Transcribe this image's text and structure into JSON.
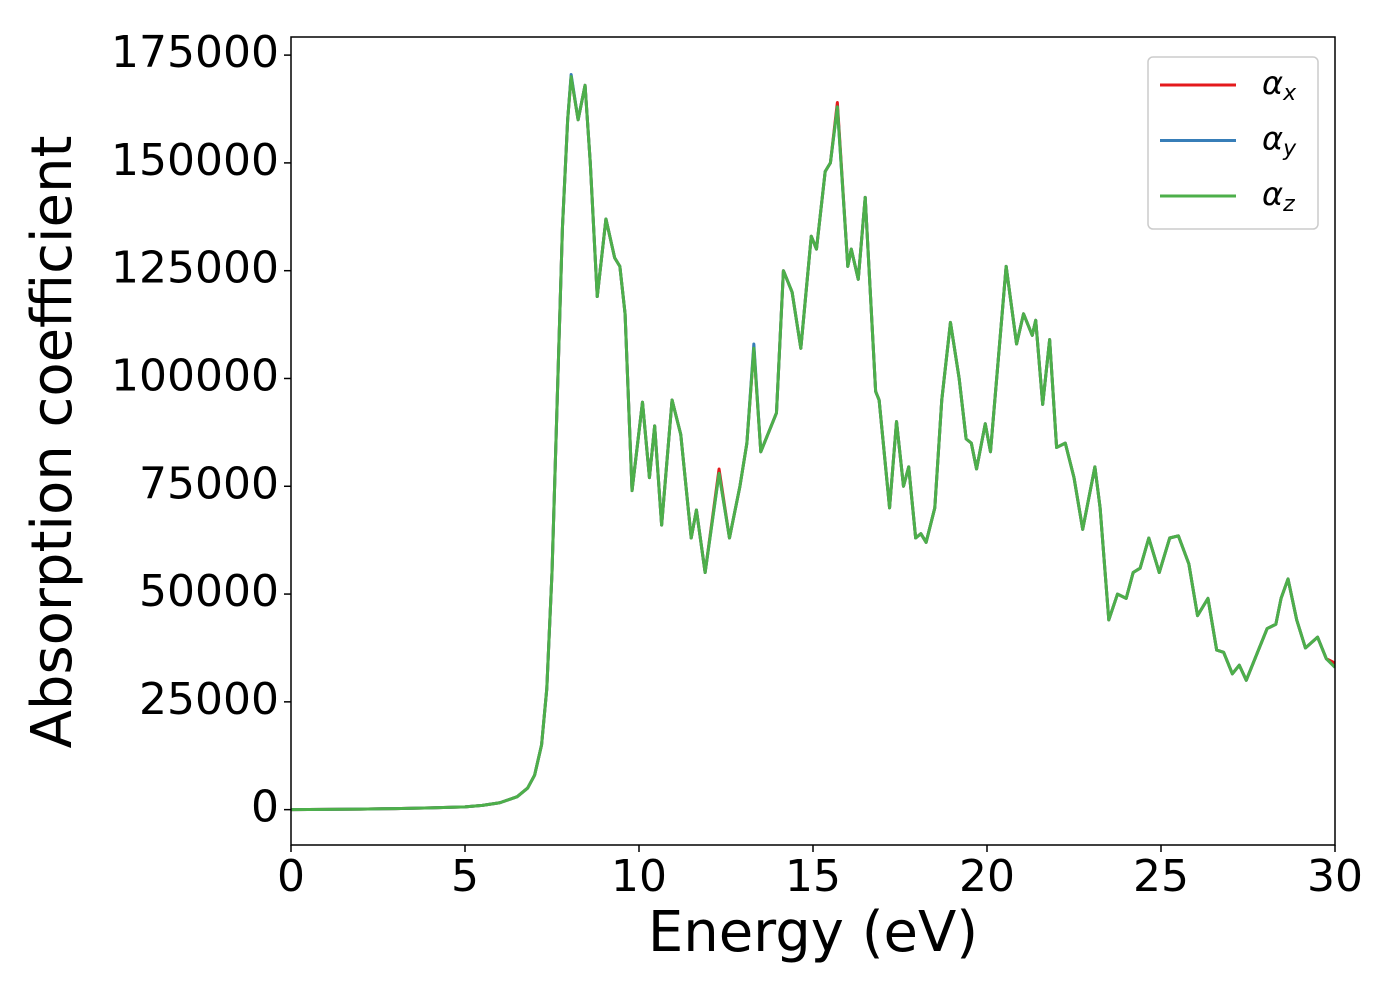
{
  "chart_data": {
    "type": "line",
    "xlabel": "Energy (eV)",
    "ylabel": "Absorption coefficient",
    "x": [
      0,
      1,
      2,
      3,
      4,
      5,
      5.5,
      6,
      6.5,
      6.8,
      7,
      7.2,
      7.35,
      7.5,
      7.65,
      7.8,
      7.95,
      8.05,
      8.25,
      8.45,
      8.6,
      8.8,
      9.05,
      9.3,
      9.45,
      9.6,
      9.8,
      10.1,
      10.3,
      10.45,
      10.65,
      10.95,
      11.2,
      11.5,
      11.65,
      11.9,
      12.3,
      12.6,
      12.9,
      13.1,
      13.3,
      13.5,
      13.8,
      13.95,
      14.15,
      14.4,
      14.65,
      14.95,
      15.1,
      15.35,
      15.5,
      15.7,
      16.0,
      16.1,
      16.3,
      16.5,
      16.8,
      16.9,
      17.2,
      17.4,
      17.6,
      17.75,
      17.95,
      18.1,
      18.25,
      18.5,
      18.7,
      18.95,
      19.2,
      19.4,
      19.55,
      19.7,
      19.95,
      20.1,
      20.55,
      20.85,
      21.05,
      21.3,
      21.4,
      21.6,
      21.8,
      22.0,
      22.25,
      22.5,
      22.75,
      23.1,
      23.25,
      23.5,
      23.75,
      24.0,
      24.2,
      24.4,
      24.65,
      24.95,
      25.25,
      25.5,
      25.8,
      26.05,
      26.35,
      26.6,
      26.8,
      27.05,
      27.25,
      27.45,
      27.8,
      28.05,
      28.3,
      28.45,
      28.65,
      28.9,
      29.15,
      29.5,
      29.75,
      30
    ],
    "series": [
      {
        "name": "αx",
        "color": "#e41a1c",
        "values": [
          0,
          50,
          120,
          250,
          400,
          650,
          1000,
          1600,
          3000,
          5000,
          8000,
          15000,
          28000,
          55000,
          95000,
          135000,
          160000,
          170000,
          160000,
          168000,
          150000,
          119000,
          137000,
          128000,
          126000,
          115000,
          74000,
          94500,
          77000,
          89000,
          66000,
          95000,
          87000,
          63000,
          69500,
          55000,
          79000,
          63000,
          75000,
          85000,
          107000,
          83000,
          89000,
          92000,
          125000,
          120000,
          107000,
          133000,
          130000,
          148000,
          150000,
          164000,
          126000,
          130000,
          123000,
          142000,
          97000,
          95000,
          70000,
          90000,
          75000,
          79500,
          63000,
          64000,
          62000,
          70000,
          95000,
          113000,
          100000,
          86000,
          85000,
          79000,
          89500,
          83000,
          126000,
          108000,
          115000,
          110000,
          113500,
          94000,
          109000,
          84000,
          85000,
          77000,
          65000,
          79500,
          70000,
          44000,
          50000,
          49000,
          55000,
          56000,
          63000,
          55000,
          63000,
          63500,
          57000,
          45000,
          49000,
          37000,
          36500,
          31500,
          33500,
          30000,
          37000,
          42000,
          43000,
          49000,
          53500,
          44000,
          37500,
          40000,
          35000,
          34000
        ]
      },
      {
        "name": "αy",
        "color": "#377eb8",
        "values": [
          0,
          50,
          120,
          250,
          400,
          650,
          1000,
          1600,
          3000,
          5000,
          8000,
          15000,
          28000,
          55000,
          95000,
          135000,
          160000,
          170500,
          160000,
          168000,
          150000,
          119000,
          137000,
          128000,
          126000,
          115000,
          74000,
          94500,
          77000,
          89000,
          66000,
          95000,
          87000,
          63000,
          69500,
          55000,
          78000,
          63000,
          75000,
          85000,
          108000,
          83000,
          89000,
          92000,
          125000,
          120000,
          107000,
          133000,
          130000,
          148000,
          150000,
          163000,
          126000,
          130000,
          123000,
          142000,
          97000,
          95000,
          70000,
          90000,
          75000,
          79500,
          63000,
          64000,
          62000,
          70000,
          95000,
          113000,
          100000,
          86000,
          85000,
          79000,
          89500,
          83000,
          126000,
          108000,
          115000,
          110000,
          113500,
          94000,
          109000,
          84000,
          85000,
          77000,
          65000,
          79500,
          70000,
          44000,
          50000,
          49000,
          55000,
          56000,
          63000,
          55000,
          63000,
          63500,
          57000,
          45000,
          49000,
          37000,
          36500,
          31500,
          33500,
          30000,
          37000,
          42000,
          43000,
          49000,
          53500,
          44000,
          37500,
          40000,
          35000,
          33000
        ]
      },
      {
        "name": "αz",
        "color": "#4daf4a",
        "values": [
          0,
          50,
          120,
          250,
          400,
          650,
          1000,
          1600,
          3000,
          5000,
          8000,
          15000,
          28000,
          55000,
          95000,
          135000,
          160000,
          170000,
          160000,
          168000,
          150000,
          119000,
          137000,
          128000,
          126000,
          115000,
          74000,
          94500,
          77000,
          89000,
          66000,
          95000,
          87000,
          63000,
          69500,
          55000,
          78000,
          63000,
          75000,
          85000,
          107000,
          83000,
          89000,
          92000,
          125000,
          120000,
          107000,
          133000,
          130000,
          148000,
          150000,
          163000,
          126000,
          130000,
          123000,
          142000,
          97000,
          95000,
          70000,
          90000,
          75000,
          79500,
          63000,
          64000,
          62000,
          70000,
          95000,
          113000,
          100000,
          86000,
          85000,
          79000,
          89500,
          83000,
          126000,
          108000,
          115000,
          110000,
          113500,
          94000,
          109000,
          84000,
          85000,
          77000,
          65000,
          79500,
          70000,
          44000,
          50000,
          49000,
          55000,
          56000,
          63000,
          55000,
          63000,
          63500,
          57000,
          45000,
          49000,
          37000,
          36500,
          31500,
          33500,
          30000,
          37000,
          42000,
          43000,
          49000,
          53500,
          44000,
          37500,
          40000,
          35000,
          33000
        ]
      }
    ],
    "xlim": [
      0,
      30
    ],
    "xticks": [
      0,
      5,
      10,
      15,
      20,
      25,
      30
    ],
    "ylim": [
      -8200,
      179200
    ],
    "yticks": [
      0,
      25000,
      50000,
      75000,
      100000,
      125000,
      150000,
      175000
    ],
    "grid": false,
    "legend": "upper right"
  }
}
